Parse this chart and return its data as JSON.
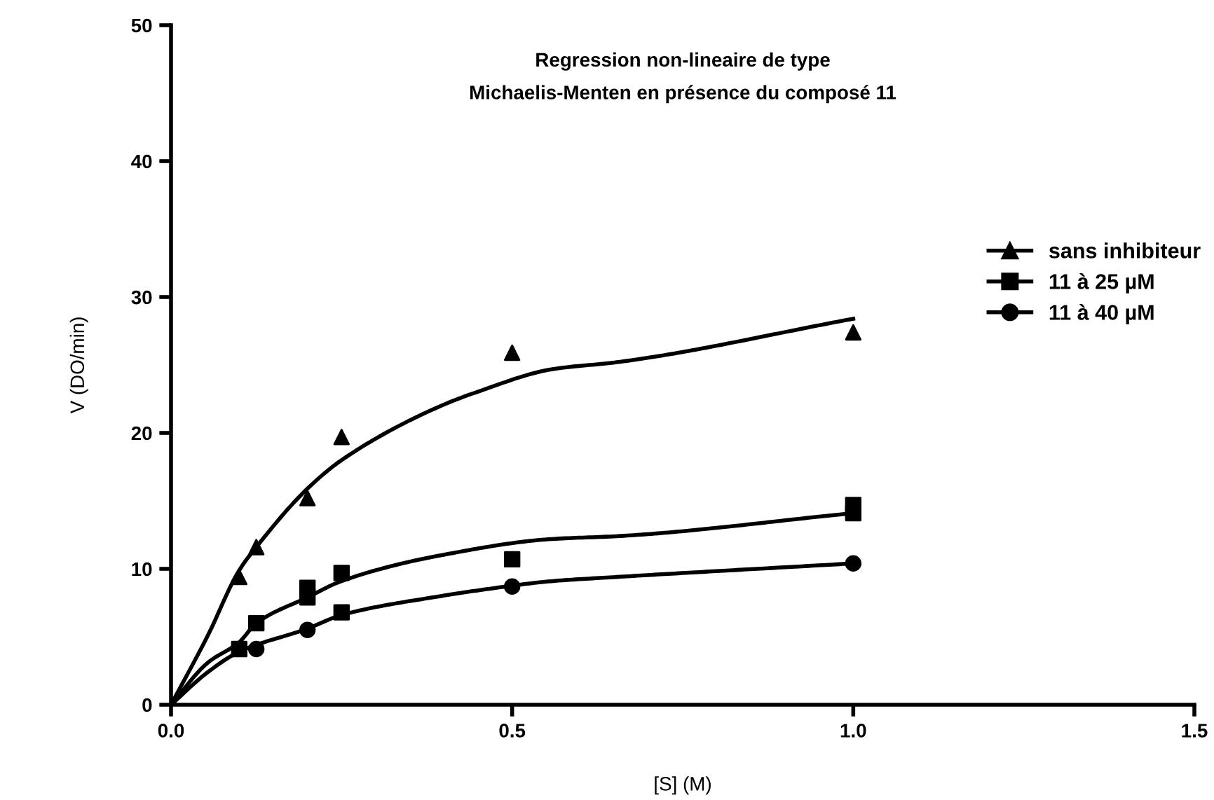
{
  "chart_data": {
    "type": "scatter",
    "title": "Regression non-lineaire de type\nMichaelis-Menten en présence du composé 11",
    "xlabel": "[S] (M)",
    "ylabel": "V (DO/min)",
    "xlim": [
      0,
      1.5
    ],
    "ylim": [
      0,
      50
    ],
    "xticks": [
      {
        "value": 0,
        "label": "0.0"
      },
      {
        "value": 0.5,
        "label": "0.5"
      },
      {
        "value": 1.0,
        "label": "1.0"
      },
      {
        "value": 1.5,
        "label": "1.5"
      }
    ],
    "yticks": [
      0,
      10,
      20,
      30,
      40,
      50
    ],
    "grid": false,
    "legend": "right",
    "series": [
      {
        "name": "sans inhibiteur",
        "marker": "triangle",
        "color": "#000000",
        "x": [
          0.1,
          0.125,
          0.2,
          0.25,
          0.5,
          1.0
        ],
        "values": [
          9.4,
          11.6,
          15.2,
          19.7,
          25.9,
          27.4
        ]
      },
      {
        "name": "11 à 25 µM",
        "marker": "square",
        "color": "#000000",
        "x": [
          0.1,
          0.125,
          0.2,
          0.2,
          0.25,
          0.25,
          0.5,
          1.0,
          1.0
        ],
        "values": [
          4.1,
          6.0,
          8.6,
          7.9,
          9.7,
          6.8,
          10.7,
          14.7,
          14.1
        ]
      },
      {
        "name": "11 à 40 µM",
        "marker": "circle",
        "color": "#000000",
        "x": [
          0.125,
          0.2,
          0.5,
          1.0
        ],
        "values": [
          4.1,
          5.5,
          8.7,
          10.4
        ]
      },
      {
        "type": "line",
        "color": "#000000",
        "x": [
          0,
          0.054,
          0.1,
          0.125,
          0.2,
          0.25,
          0.396,
          0.448,
          0.56,
          0.653,
          1.0
        ],
        "values": [
          0,
          5.1,
          9.9,
          11.6,
          15.9,
          18.0,
          22.0,
          23.0,
          24.7,
          25.2,
          28.4
        ]
      },
      {
        "type": "line",
        "color": "#000000",
        "x": [
          0,
          0.054,
          0.1,
          0.125,
          0.2,
          0.25,
          0.396,
          0.56,
          0.653,
          1.0
        ],
        "values": [
          0,
          3.1,
          4.6,
          6.0,
          7.9,
          9.1,
          11.0,
          12.2,
          12.4,
          14.1
        ]
      },
      {
        "type": "line",
        "color": "#000000",
        "x": [
          0,
          0.054,
          0.1,
          0.2,
          0.25,
          0.396,
          0.448,
          0.56,
          0.653,
          1.0
        ],
        "values": [
          0,
          2.4,
          3.9,
          5.6,
          6.6,
          8.0,
          8.4,
          9.1,
          9.4,
          10.4
        ]
      }
    ]
  }
}
